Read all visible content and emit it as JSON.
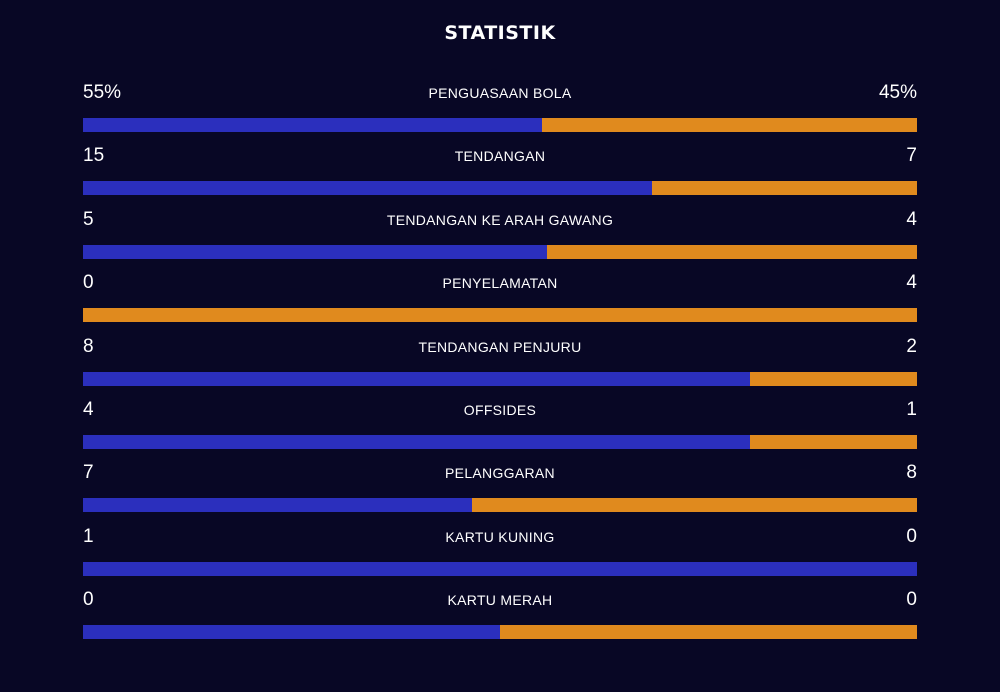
{
  "title": "STATISTIK",
  "colors": {
    "background": "#080725",
    "home": "#2b2fbd",
    "away": "#e08a1e"
  },
  "stats": [
    {
      "label": "PENGUASAAN BOLA",
      "home": "55%",
      "away": "45%",
      "home_share": 0.55
    },
    {
      "label": "TENDANGAN",
      "home": "15",
      "away": "7",
      "home_share": 0.682
    },
    {
      "label": "TENDANGAN KE ARAH GAWANG",
      "home": "5",
      "away": "4",
      "home_share": 0.556
    },
    {
      "label": "PENYELAMATAN",
      "home": "0",
      "away": "4",
      "home_share": 0.0
    },
    {
      "label": "TENDANGAN PENJURU",
      "home": "8",
      "away": "2",
      "home_share": 0.8
    },
    {
      "label": "OFFSIDES",
      "home": "4",
      "away": "1",
      "home_share": 0.8
    },
    {
      "label": "PELANGGARAN",
      "home": "7",
      "away": "8",
      "home_share": 0.467
    },
    {
      "label": "KARTU KUNING",
      "home": "1",
      "away": "0",
      "home_share": 1.0
    },
    {
      "label": "KARTU MERAH",
      "home": "0",
      "away": "0",
      "home_share": 0.5
    }
  ]
}
